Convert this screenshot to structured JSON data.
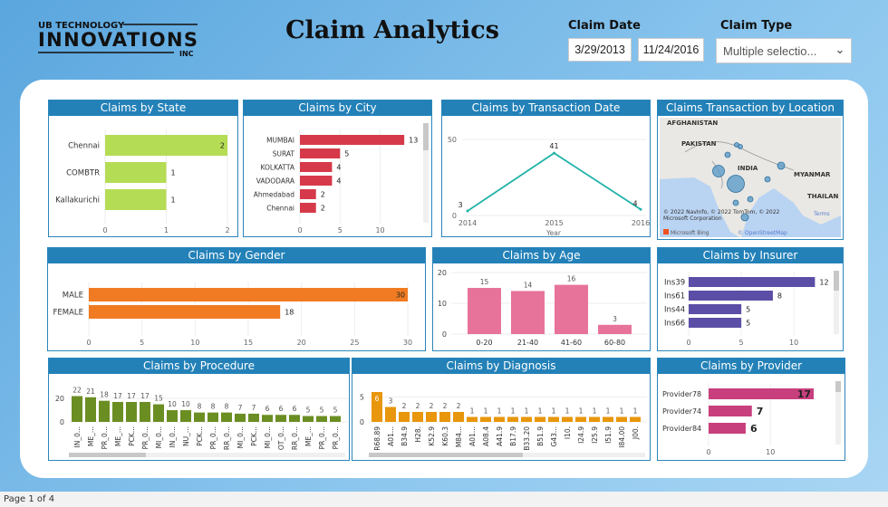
{
  "header": {
    "logo_text": {
      "top": "UB TECHNOLOGY",
      "main": "INNOVATIONS",
      "bottom": "INC"
    },
    "title": "Claim Analytics",
    "claim_date": {
      "label": "Claim Date",
      "start": "3/29/2013",
      "end": "11/24/2016"
    },
    "claim_type": {
      "label": "Claim Type",
      "value": "Multiple selectio..."
    }
  },
  "status": "Page 1 of 4",
  "colors": {
    "header_bar": "#2381b8",
    "state": "#b5dc55",
    "city": "#d63a4a",
    "line": "#22b3a8",
    "gender": "#f07b22",
    "age": "#e8739a",
    "insurer": "#5b4ea6",
    "procedure": "#6b8e23",
    "diagnosis": "#e8960c",
    "provider": "#c83f7d"
  },
  "chart_data": [
    {
      "id": "state",
      "type": "bar",
      "orientation": "horizontal",
      "title": "Claims by State",
      "categories": [
        "Chennai",
        "COMBTR",
        "Kallakurichi"
      ],
      "values": [
        2,
        1,
        1
      ],
      "xlim": [
        0,
        2
      ],
      "ticks": [
        0,
        1,
        2
      ]
    },
    {
      "id": "city",
      "type": "bar",
      "orientation": "horizontal",
      "title": "Claims by City",
      "categories": [
        "MUMBAI",
        "SURAT",
        "KOLKATTA",
        "VADODARA",
        "Ahmedabad",
        "Chennai"
      ],
      "values": [
        13,
        5,
        4,
        4,
        2,
        2
      ],
      "xlim": [
        0,
        14
      ],
      "ticks": [
        0,
        5,
        10
      ]
    },
    {
      "id": "date",
      "type": "line",
      "title": "Claims by Transaction Date",
      "xlabel": "Year",
      "x": [
        "2014",
        "2015",
        "2016"
      ],
      "values": [
        3,
        41,
        4
      ],
      "ylim": [
        0,
        50
      ],
      "yticks": [
        0,
        50
      ]
    },
    {
      "id": "gender",
      "type": "bar",
      "orientation": "horizontal",
      "title": "Claims by Gender",
      "categories": [
        "MALE",
        "FEMALE"
      ],
      "values": [
        30,
        18
      ],
      "xlim": [
        0,
        30
      ],
      "ticks": [
        0,
        5,
        10,
        15,
        20,
        25,
        30
      ]
    },
    {
      "id": "age",
      "type": "bar",
      "title": "Claims by Age",
      "categories": [
        "0-20",
        "21-40",
        "41-60",
        "60-80"
      ],
      "values": [
        15,
        14,
        16,
        3
      ],
      "ylim": [
        0,
        20
      ],
      "yticks": [
        0,
        10,
        20
      ]
    },
    {
      "id": "insurer",
      "type": "bar",
      "orientation": "horizontal",
      "title": "Claims by Insurer",
      "categories": [
        "Ins39",
        "Ins61",
        "Ins44",
        "Ins66"
      ],
      "values": [
        12,
        8,
        5,
        5
      ],
      "xlim": [
        0,
        13
      ],
      "ticks": [
        0,
        5,
        10
      ]
    },
    {
      "id": "procedure",
      "type": "bar",
      "title": "Claims by Procedure",
      "categories": [
        "IN_0...",
        "ME_...",
        "PR_0...",
        "ME_...",
        "PCK...",
        "PR_0...",
        "MI_0...",
        "IN_0...",
        "NU_...",
        "PCK...",
        "PR_0...",
        "RR_0...",
        "MI_0...",
        "PCK...",
        "MI_0...",
        "OT_0...",
        "RR_0...",
        "ME_...",
        "PR_0...",
        "PR_0..."
      ],
      "values": [
        22,
        21,
        18,
        17,
        17,
        17,
        15,
        10,
        10,
        8,
        8,
        8,
        7,
        7,
        6,
        6,
        6,
        5,
        5,
        5
      ],
      "ylim": [
        0,
        22
      ],
      "yticks": [
        0,
        20
      ]
    },
    {
      "id": "diagnosis",
      "type": "bar",
      "title": "Claims by Diagnosis",
      "categories": [
        "R68.89",
        "A01...",
        "B34.9",
        "H28.",
        "K52.9",
        "K60.3",
        "M84...",
        "A01...",
        "A08.4",
        "A41.9",
        "B17.9",
        "B33.20",
        "B51.9",
        "G43...",
        "I10.",
        "I24.9",
        "I25.9",
        "I51.9",
        "I84.00",
        "J00."
      ],
      "values": [
        6,
        3,
        2,
        2,
        2,
        2,
        2,
        1,
        1,
        1,
        1,
        1,
        1,
        1,
        1,
        1,
        1,
        1,
        1,
        1
      ],
      "ylim": [
        0,
        6
      ],
      "yticks": [
        0,
        5
      ]
    },
    {
      "id": "provider",
      "type": "bar",
      "orientation": "horizontal",
      "title": "Claims by Provider",
      "categories": [
        "Provider78",
        "Provider74",
        "Provider84"
      ],
      "values": [
        17,
        7,
        6
      ],
      "xlim": [
        0,
        17
      ],
      "ticks": [
        0,
        10
      ]
    }
  ],
  "map": {
    "title": "Claims Transaction by Location",
    "labels": [
      "AFGHANISTAN",
      "PAKISTAN",
      "INDIA",
      "MYANMAR",
      "THAILAN"
    ],
    "attribution": "© 2022 NavInfo, © 2022 TomTom, © 2022 Microsoft Corporation",
    "terms": "Terms",
    "osm": "© OpenStreetMap",
    "bing": "Microsoft Bing"
  }
}
